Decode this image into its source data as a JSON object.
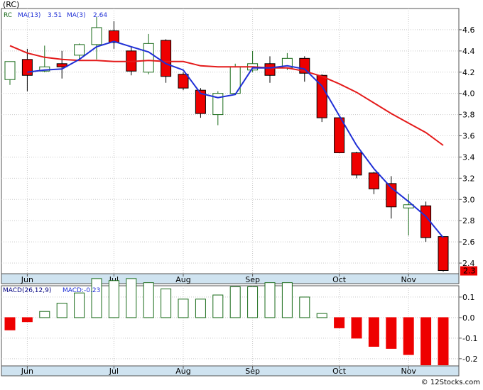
{
  "ticker_label": "(RC)",
  "watermark": "© 12Stocks.com",
  "colors": {
    "up_fill": "#ffffff",
    "up_stroke": "#1a6b1a",
    "down_fill": "#ee0000",
    "down_stroke": "#000000",
    "ma13": "#e41b1b",
    "ma3": "#1f2fd6",
    "macd_bar": "#1a6b1a",
    "panel_bg": "#ffffff",
    "axis_bg": "#cfe3f0",
    "grid": "#c9c9c9",
    "last_price_box": "#ee0000"
  },
  "price_panel": {
    "legend": [
      {
        "text": "RC",
        "color": "#1a6b1a"
      },
      {
        "text": "MA(13)",
        "color": "#1f2fd6"
      },
      {
        "text": "3.51",
        "color": "#1f2fd6"
      },
      {
        "text": "MA(3)",
        "color": "#1f2fd6"
      },
      {
        "text": "2.64",
        "color": "#1f2fd6"
      }
    ],
    "last_price_label": "2.3"
  },
  "macd_panel": {
    "legend": [
      {
        "text": "MACD(26,12,9)",
        "color": "#000080"
      },
      {
        "text": "MACD:-0.23",
        "color": "#1f2fd6"
      }
    ]
  },
  "chart_data": [
    {
      "type": "candlestick",
      "title": "(RC)",
      "ylim": [
        2.3,
        4.8
      ],
      "yticks": [
        2.4,
        2.6,
        2.8,
        3.0,
        3.2,
        3.4,
        3.6,
        3.8,
        4.0,
        4.2,
        4.4,
        4.6
      ],
      "x_month_labels": [
        {
          "label": "Jun",
          "index": 1
        },
        {
          "label": "Jul",
          "index": 6
        },
        {
          "label": "Aug",
          "index": 10
        },
        {
          "label": "Sep",
          "index": 14
        },
        {
          "label": "Oct",
          "index": 19
        },
        {
          "label": "Nov",
          "index": 23
        }
      ],
      "candles": [
        {
          "open": 4.13,
          "high": 4.3,
          "low": 4.08,
          "close": 4.3
        },
        {
          "open": 4.32,
          "high": 4.42,
          "low": 4.02,
          "close": 4.17
        },
        {
          "open": 4.21,
          "high": 4.45,
          "low": 4.2,
          "close": 4.25
        },
        {
          "open": 4.28,
          "high": 4.4,
          "low": 4.14,
          "close": 4.25
        },
        {
          "open": 4.36,
          "high": 4.47,
          "low": 4.32,
          "close": 4.46
        },
        {
          "open": 4.46,
          "high": 4.72,
          "low": 4.32,
          "close": 4.62
        },
        {
          "open": 4.59,
          "high": 4.68,
          "low": 4.42,
          "close": 4.48
        },
        {
          "open": 4.4,
          "high": 4.44,
          "low": 4.17,
          "close": 4.21
        },
        {
          "open": 4.2,
          "high": 4.56,
          "low": 4.18,
          "close": 4.47
        },
        {
          "open": 4.5,
          "high": 4.51,
          "low": 4.1,
          "close": 4.16
        },
        {
          "open": 4.18,
          "high": 4.2,
          "low": 4.03,
          "close": 4.05
        },
        {
          "open": 4.03,
          "high": 4.05,
          "low": 3.77,
          "close": 3.81
        },
        {
          "open": 3.8,
          "high": 4.02,
          "low": 3.7,
          "close": 4.0
        },
        {
          "open": 4.0,
          "high": 4.28,
          "low": 4.0,
          "close": 4.25
        },
        {
          "open": 4.22,
          "high": 4.4,
          "low": 4.2,
          "close": 4.28
        },
        {
          "open": 4.28,
          "high": 4.35,
          "low": 4.1,
          "close": 4.17
        },
        {
          "open": 4.24,
          "high": 4.38,
          "low": 4.22,
          "close": 4.33
        },
        {
          "open": 4.33,
          "high": 4.35,
          "low": 4.11,
          "close": 4.19
        },
        {
          "open": 4.17,
          "high": 4.18,
          "low": 3.73,
          "close": 3.77
        },
        {
          "open": 3.77,
          "high": 3.77,
          "low": 3.44,
          "close": 3.44
        },
        {
          "open": 3.44,
          "high": 3.45,
          "low": 3.2,
          "close": 3.23
        },
        {
          "open": 3.25,
          "high": 3.26,
          "low": 3.05,
          "close": 3.1
        },
        {
          "open": 3.15,
          "high": 3.22,
          "low": 2.82,
          "close": 2.93
        },
        {
          "open": 2.92,
          "high": 3.05,
          "low": 2.66,
          "close": 2.95
        },
        {
          "open": 2.94,
          "high": 2.98,
          "low": 2.6,
          "close": 2.64
        },
        {
          "open": 2.65,
          "high": 2.65,
          "low": 2.32,
          "close": 2.33
        }
      ],
      "series": [
        {
          "name": "MA(13)",
          "values": [
            4.45,
            4.38,
            4.34,
            4.32,
            4.31,
            4.31,
            4.3,
            4.3,
            4.31,
            4.3,
            4.3,
            4.26,
            4.25,
            4.25,
            4.25,
            4.24,
            4.24,
            4.21,
            4.16,
            4.09,
            4.01,
            3.91,
            3.81,
            3.72,
            3.63,
            3.51
          ]
        },
        {
          "name": "MA(3)",
          "values": [
            null,
            4.2,
            4.22,
            4.23,
            4.32,
            4.44,
            4.49,
            4.44,
            4.39,
            4.28,
            4.22,
            4.0,
            3.96,
            3.99,
            4.24,
            4.24,
            4.26,
            4.23,
            4.07,
            3.79,
            3.51,
            3.29,
            3.11,
            2.98,
            2.84,
            2.64
          ]
        }
      ]
    },
    {
      "type": "bar",
      "title": "MACD(26,12,9)",
      "ylim": [
        -0.235,
        0.155
      ],
      "yticks": [
        -0.2,
        -0.1,
        0.0,
        0.1
      ],
      "x_month_labels": [
        {
          "label": "Jun",
          "index": 1
        },
        {
          "label": "Jul",
          "index": 6
        },
        {
          "label": "Aug",
          "index": 10
        },
        {
          "label": "Sep",
          "index": 14
        },
        {
          "label": "Oct",
          "index": 19
        },
        {
          "label": "Nov",
          "index": 23
        }
      ],
      "values": [
        -0.06,
        -0.02,
        0.03,
        0.07,
        0.12,
        0.19,
        0.18,
        0.19,
        0.17,
        0.14,
        0.09,
        0.09,
        0.11,
        0.15,
        0.15,
        0.17,
        0.17,
        0.1,
        0.02,
        -0.05,
        -0.1,
        -0.14,
        -0.15,
        -0.18,
        -0.23,
        -0.23
      ]
    }
  ]
}
